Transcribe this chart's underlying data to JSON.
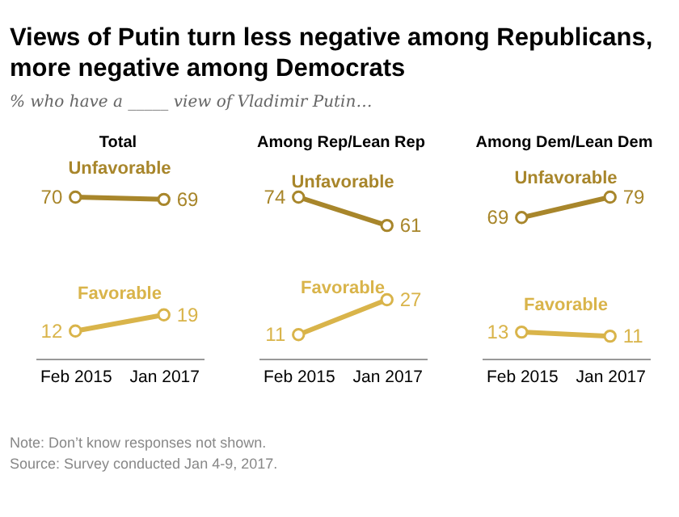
{
  "chart_data": [
    {
      "type": "line",
      "title": "Total",
      "annotations": [
        "Views of Putin turn less negative among Republicans, more negative among Democrats",
        "% who have a _____ view of Vladimir Putin…"
      ],
      "categories": [
        "Feb 2015",
        "Jan 2017"
      ],
      "tick_labels": "x",
      "marker": "circle",
      "data_labels": true,
      "series": [
        {
          "name": "Unfavorable",
          "color": "#a8862b",
          "values": [
            70,
            69
          ]
        },
        {
          "name": "Favorable",
          "color": "#d9b44a",
          "values": [
            12,
            19
          ]
        }
      ]
    },
    {
      "type": "line",
      "title": "Among Rep/Lean Rep",
      "categories": [
        "Feb 2015",
        "Jan 2017"
      ],
      "tick_labels": "x",
      "marker": "circle",
      "data_labels": true,
      "series": [
        {
          "name": "Unfavorable",
          "color": "#a8862b",
          "values": [
            74,
            61
          ]
        },
        {
          "name": "Favorable",
          "color": "#d9b44a",
          "values": [
            11,
            27
          ]
        }
      ]
    },
    {
      "type": "line",
      "title": "Among Dem/Lean Dem",
      "annotations": [
        "Note: Don’t know responses not shown.",
        "Source: Survey conducted Jan 4-9, 2017."
      ],
      "categories": [
        "Feb 2015",
        "Jan 2017"
      ],
      "tick_labels": "x",
      "marker": "circle",
      "data_labels": true,
      "series": [
        {
          "name": "Unfavorable",
          "color": "#a8862b",
          "values": [
            69,
            79
          ]
        },
        {
          "name": "Favorable",
          "color": "#d9b44a",
          "values": [
            13,
            11
          ]
        }
      ]
    }
  ]
}
